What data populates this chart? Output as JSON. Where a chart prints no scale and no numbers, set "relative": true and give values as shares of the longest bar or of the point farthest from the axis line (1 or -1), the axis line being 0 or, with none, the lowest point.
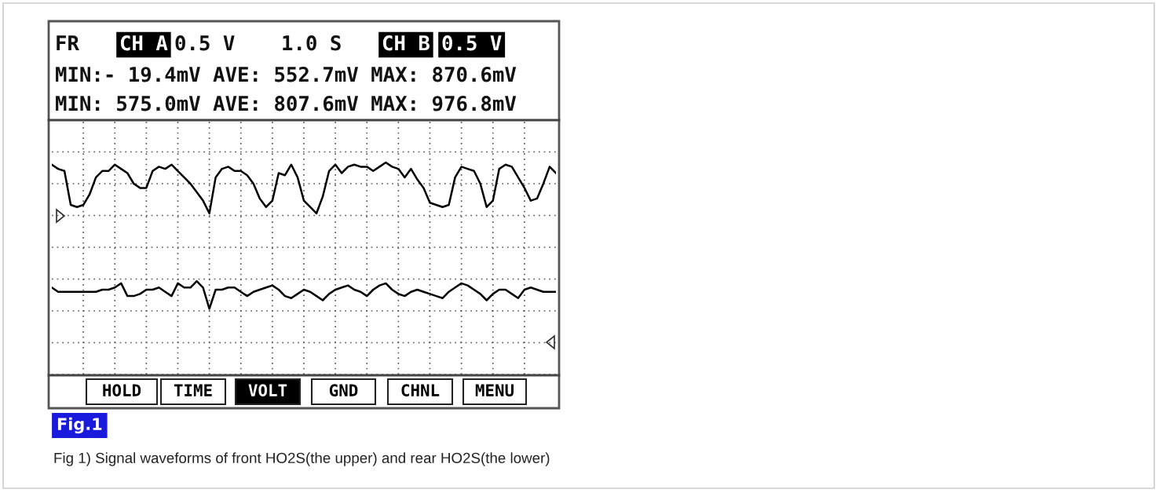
{
  "chart_data": {
    "type": "line",
    "relative": true,
    "grid": true,
    "marker": "none",
    "line_style": "solid",
    "categories": [
      null,
      null,
      null,
      null,
      null,
      null,
      null,
      null,
      null,
      null,
      null,
      null,
      null,
      null,
      null,
      null,
      null,
      null,
      null,
      null,
      null,
      null,
      null,
      null,
      null,
      null,
      null,
      null,
      null,
      null,
      null,
      null,
      null,
      null,
      null,
      null,
      null,
      null,
      null,
      null,
      null,
      null,
      null,
      null,
      null,
      null,
      null,
      null,
      null,
      null,
      null,
      null,
      null,
      null,
      null,
      null,
      null,
      null,
      null,
      null,
      null,
      null,
      null,
      null,
      null,
      null,
      null,
      null,
      null,
      null,
      null,
      null,
      null,
      null,
      null,
      null,
      null,
      null,
      null,
      null,
      null
    ],
    "series": [
      {
        "color": "#000000",
        "values": [
          0.99,
          0.97,
          0.96,
          0.8,
          0.79,
          0.8,
          0.85,
          0.93,
          0.96,
          0.96,
          0.99,
          0.97,
          0.95,
          0.9,
          0.88,
          0.88,
          0.96,
          0.98,
          0.97,
          0.99,
          0.96,
          0.93,
          0.9,
          0.86,
          0.82,
          0.76,
          0.93,
          0.97,
          0.98,
          0.96,
          0.96,
          0.94,
          0.9,
          0.83,
          0.79,
          0.82,
          0.95,
          0.94,
          0.99,
          0.93,
          0.82,
          0.79,
          0.76,
          0.84,
          0.96,
          0.99,
          0.95,
          0.98,
          0.99,
          0.98,
          0.98,
          0.96,
          0.98,
          1.0,
          0.98,
          0.97,
          0.93,
          0.97,
          0.92,
          0.88,
          0.81,
          0.8,
          0.79,
          0.8,
          0.93,
          0.98,
          0.97,
          0.96,
          0.9,
          0.79,
          0.82,
          0.97,
          0.99,
          0.98,
          0.93,
          0.88,
          0.82,
          0.83,
          0.9,
          0.98,
          0.95
        ]
      },
      {
        "color": "#000000",
        "values": [
          0.41,
          0.39,
          0.39,
          0.39,
          0.39,
          0.39,
          0.39,
          0.39,
          0.4,
          0.4,
          0.41,
          0.43,
          0.37,
          0.37,
          0.38,
          0.4,
          0.4,
          0.41,
          0.39,
          0.37,
          0.43,
          0.41,
          0.41,
          0.44,
          0.41,
          0.31,
          0.4,
          0.4,
          0.41,
          0.41,
          0.39,
          0.37,
          0.39,
          0.4,
          0.41,
          0.42,
          0.4,
          0.37,
          0.36,
          0.38,
          0.4,
          0.39,
          0.37,
          0.35,
          0.38,
          0.4,
          0.41,
          0.42,
          0.4,
          0.39,
          0.37,
          0.4,
          0.42,
          0.43,
          0.4,
          0.38,
          0.37,
          0.39,
          0.4,
          0.39,
          0.38,
          0.37,
          0.36,
          0.39,
          0.41,
          0.43,
          0.42,
          0.4,
          0.38,
          0.35,
          0.38,
          0.4,
          0.4,
          0.38,
          0.36,
          0.4,
          0.41,
          0.4,
          0.39,
          0.39,
          0.39
        ]
      }
    ],
    "annotations": [
      "FR",
      "CH A",
      "0.5 V",
      "1.0 S",
      "CH B",
      "0.5 V",
      "MIN:- 19.4mV AVE: 552.7mV MAX: 870.6mV",
      "MIN: 575.0mV AVE: 807.6mV MAX: 976.8mV",
      "HOLD",
      "TIME",
      "VOLT",
      "GND",
      "CHNL",
      "MENU",
      "Fig.1",
      "Fig 1) Signal waveforms of front HO2S(the upper) and rear HO2S(the lower)"
    ]
  }
}
